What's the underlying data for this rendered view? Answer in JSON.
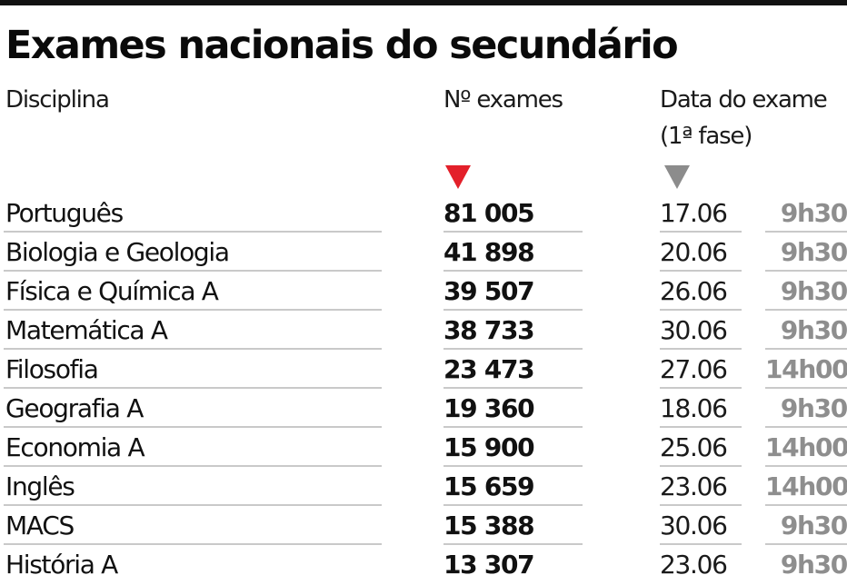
{
  "title": "Exames nacionais do secundário",
  "colors": {
    "top_rule": "#111111",
    "accent_red": "#e3202a",
    "accent_gray": "#8c8c8c",
    "time_text": "#8e8e8e",
    "row_divider": "#c9c9c9"
  },
  "table": {
    "headers": {
      "discipline": "Disciplina",
      "count": "Nº exames",
      "date_line1": "Data do exame",
      "date_line2": "(1ª fase)"
    },
    "sort_indicators": {
      "count": "sort-descending-red",
      "date": "sort-descending-gray"
    },
    "rows": [
      {
        "discipline": "Português",
        "count": "81 005",
        "date": "17.06",
        "time": "9h30"
      },
      {
        "discipline": "Biologia e Geologia",
        "count": "41 898",
        "date": "20.06",
        "time": "9h30"
      },
      {
        "discipline": "Física e Química A",
        "count": "39 507",
        "date": "26.06",
        "time": "9h30"
      },
      {
        "discipline": "Matemática A",
        "count": "38 733",
        "date": "30.06",
        "time": "9h30"
      },
      {
        "discipline": "Filosofia",
        "count": "23 473",
        "date": "27.06",
        "time": "14h00"
      },
      {
        "discipline": "Geografia A",
        "count": "19 360",
        "date": "18.06",
        "time": "9h30"
      },
      {
        "discipline": "Economia A",
        "count": "15 900",
        "date": "25.06",
        "time": "14h00"
      },
      {
        "discipline": "Inglês",
        "count": "15 659",
        "date": "23.06",
        "time": "14h00"
      },
      {
        "discipline": "MACS",
        "count": "15 388",
        "date": "30.06",
        "time": "9h30"
      },
      {
        "discipline": "História A",
        "count": "13 307",
        "date": "23.06",
        "time": "9h30"
      }
    ]
  }
}
